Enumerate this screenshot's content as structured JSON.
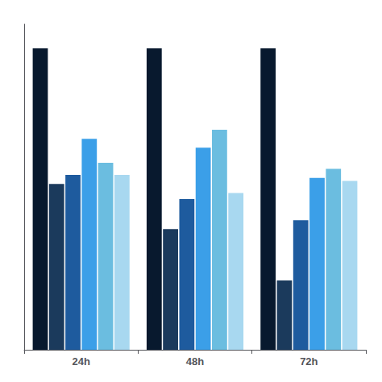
{
  "chart_data": {
    "type": "bar",
    "categories": [
      "24h",
      "48h",
      "72h"
    ],
    "series": [
      {
        "color": "#08192e",
        "values": [
          1.0,
          1.0,
          1.0
        ]
      },
      {
        "color": "#1b3a5c",
        "values": [
          0.55,
          0.4,
          0.23
        ]
      },
      {
        "color": "#1e5b9e",
        "values": [
          0.58,
          0.5,
          0.43
        ]
      },
      {
        "color": "#3b9fe8",
        "values": [
          0.7,
          0.67,
          0.57
        ]
      },
      {
        "color": "#6bbde0",
        "values": [
          0.62,
          0.73,
          0.6
        ]
      },
      {
        "color": "#a8d8f0",
        "values": [
          0.58,
          0.52,
          0.56
        ]
      }
    ],
    "ylim": [
      0,
      1.08
    ],
    "yticks": [],
    "tick_labels": "x",
    "grid": false
  }
}
